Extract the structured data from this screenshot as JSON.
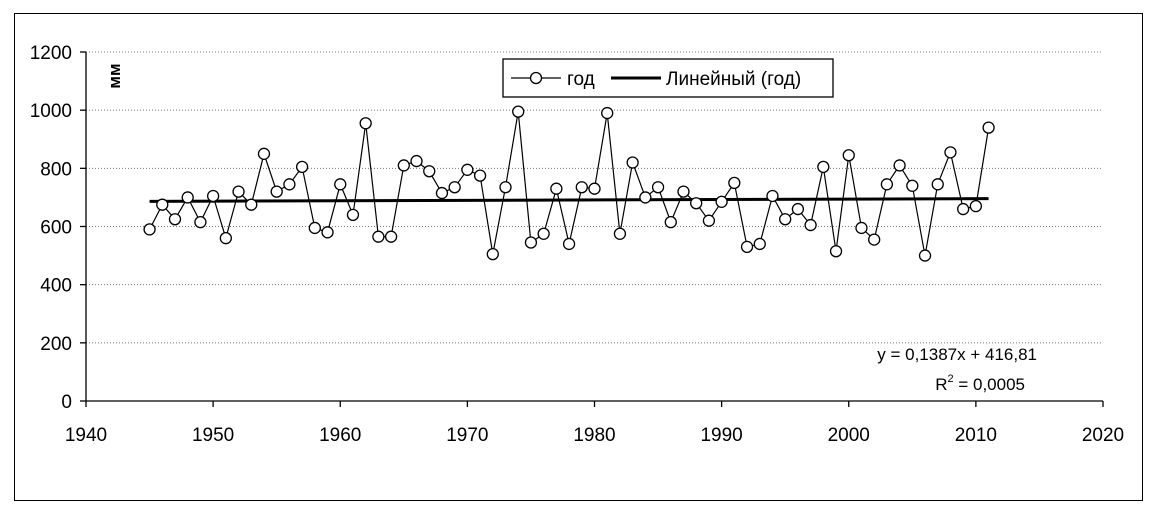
{
  "chart_data": {
    "type": "line",
    "ylabel": "мм",
    "xlim": [
      1940,
      2020
    ],
    "ylim": [
      0,
      1200
    ],
    "xticks": [
      1940,
      1950,
      1960,
      1970,
      1980,
      1990,
      2000,
      2010,
      2020
    ],
    "yticks": [
      0,
      200,
      400,
      600,
      800,
      1000,
      1200
    ],
    "grid": "horizontal dotted",
    "legend_position": "top-center",
    "series": [
      {
        "name": "год",
        "marker": "open-circle",
        "color": "#000000",
        "x": [
          1945,
          1946,
          1947,
          1948,
          1949,
          1950,
          1951,
          1952,
          1953,
          1954,
          1955,
          1956,
          1957,
          1958,
          1959,
          1960,
          1961,
          1962,
          1963,
          1964,
          1965,
          1966,
          1967,
          1968,
          1969,
          1970,
          1971,
          1972,
          1973,
          1974,
          1975,
          1976,
          1977,
          1978,
          1979,
          1980,
          1981,
          1982,
          1983,
          1984,
          1985,
          1986,
          1987,
          1988,
          1989,
          1990,
          1991,
          1992,
          1993,
          1994,
          1995,
          1996,
          1997,
          1998,
          1999,
          2000,
          2001,
          2002,
          2003,
          2004,
          2005,
          2006,
          2007,
          2008,
          2009,
          2010,
          2011
        ],
        "y": [
          590,
          675,
          625,
          700,
          615,
          705,
          560,
          720,
          675,
          850,
          720,
          745,
          805,
          595,
          580,
          745,
          640,
          955,
          565,
          565,
          810,
          825,
          790,
          715,
          735,
          795,
          775,
          505,
          735,
          995,
          545,
          575,
          730,
          540,
          735,
          730,
          990,
          575,
          820,
          700,
          735,
          615,
          720,
          680,
          620,
          685,
          750,
          530,
          540,
          705,
          625,
          660,
          605,
          805,
          515,
          845,
          595,
          555,
          745,
          810,
          740,
          500,
          745,
          855,
          660,
          670,
          940
        ]
      },
      {
        "name": "Линейный (год)",
        "type": "trendline",
        "color": "#000000",
        "equation": "y = 0,1387x + 416,81",
        "r2_label": "R",
        "r2_sup": "2",
        "r2_value": " = 0,0005",
        "x": [
          1945,
          2011
        ],
        "y": [
          686.5,
          695.7
        ]
      }
    ]
  }
}
